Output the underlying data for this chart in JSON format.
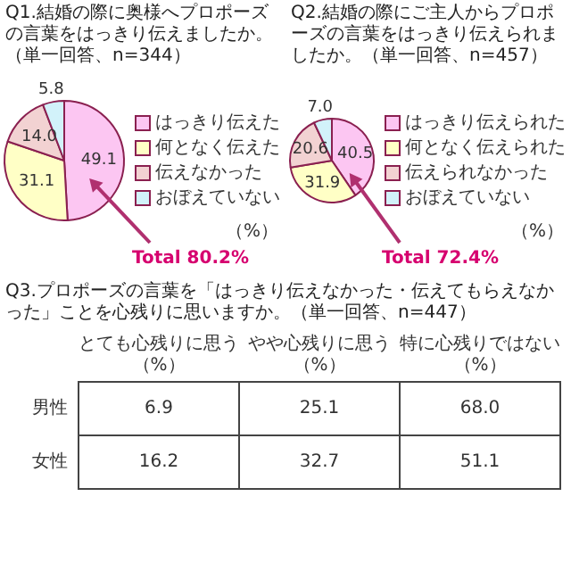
{
  "chart_data": [
    {
      "type": "pie",
      "title": "Q1.結婚の際に奥様へプロポーズの言葉をはっきり伝えましたか。（単一回答、n=344）",
      "categories": [
        "はっきり伝えた",
        "何となく伝えた",
        "伝えなかった",
        "おぼえていない"
      ],
      "values": [
        49.1,
        31.1,
        14.0,
        5.8
      ],
      "value_labels": [
        "49.1",
        "31.1",
        "14.0",
        "5.8"
      ],
      "colors": [
        "#fcc6f2",
        "#ffffc6",
        "#f2d2d2",
        "#d2f2fa"
      ],
      "legend": "right",
      "annotations": [
        "Total 80.2%",
        "（%）"
      ]
    },
    {
      "type": "pie",
      "title": "Q2.結婚の際にご主人からプロポーズの言葉をはっきり伝えられましたか。（単一回答、n=457）",
      "categories": [
        "はっきり伝えられた",
        "何となく伝えられた",
        "伝えられなかった",
        "おぼえていない"
      ],
      "values": [
        40.5,
        31.9,
        20.6,
        7.0
      ],
      "value_labels": [
        "40.5",
        "31.9",
        "20.6",
        "7.0"
      ],
      "colors": [
        "#fcc6f2",
        "#ffffc6",
        "#f2d2d2",
        "#d2f2fa"
      ],
      "legend": "right",
      "annotations": [
        "Total 72.4%",
        "（%）"
      ]
    },
    {
      "type": "heatmap",
      "title": "Q3.プロポーズの言葉を「はっきり伝えなかった・伝えてもらえなかった」ことを心残りに思いますか。（単一回答、n=447）",
      "categories": [
        "とても心残りに思う（%）",
        "やや心残りに思う（%）",
        "特に心残りではない（%）"
      ],
      "y_categories": [
        "男性",
        "女性"
      ],
      "cells": [
        [
          6.9,
          25.1,
          68.0
        ],
        [
          16.2,
          32.7,
          51.1
        ]
      ],
      "cell_labels": [
        [
          "6.9",
          "25.1",
          "68.0"
        ],
        [
          "16.2",
          "32.7",
          "51.1"
        ]
      ]
    }
  ]
}
